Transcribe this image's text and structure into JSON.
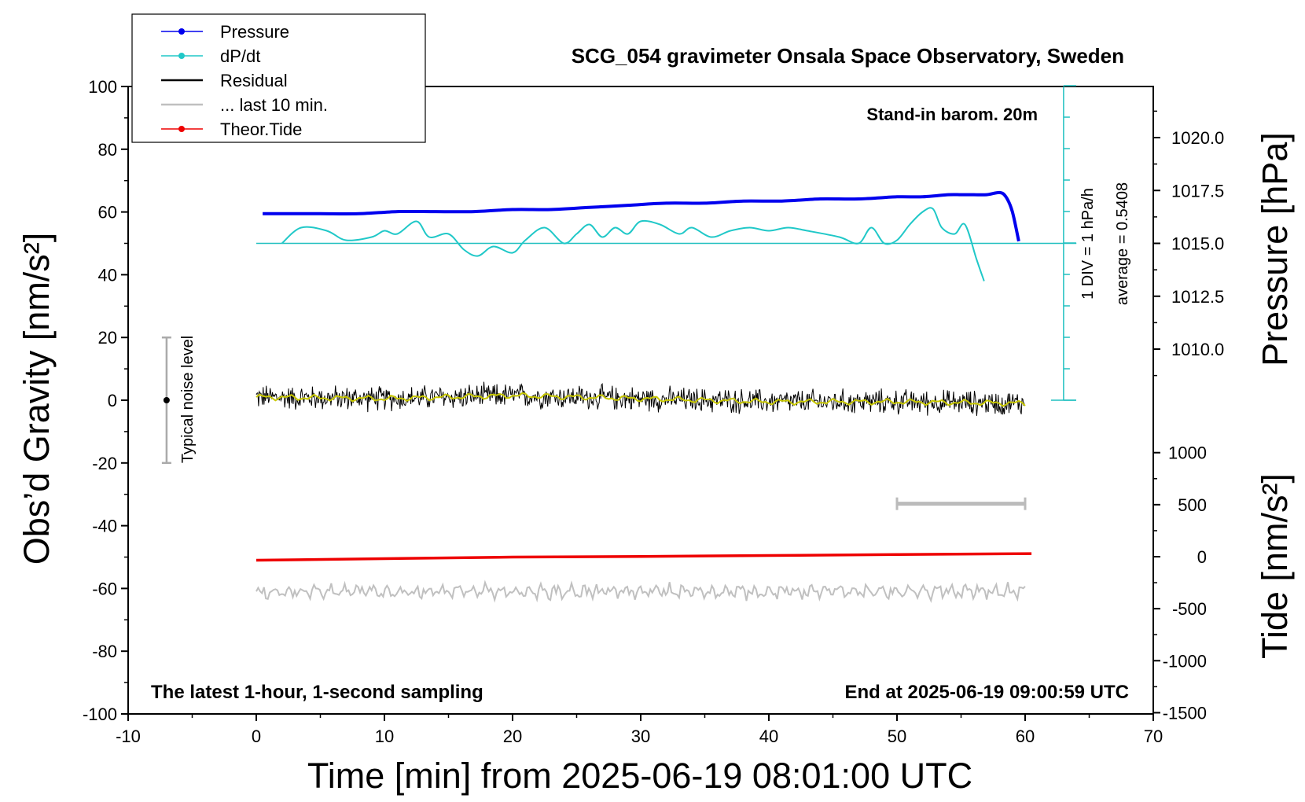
{
  "chart_data": {
    "type": "line",
    "title": "SCG_054 gravimeter Onsala Space Observatory, Sweden",
    "xlabel": "Time [min] from 2025-06-19 08:01:00 UTC",
    "ylabel_left": "Obs’d Gravity [nm/s²]",
    "ylabel_right_pressure": "Pressure [hPa]",
    "ylabel_right_tide": "Tide [nm/s²]",
    "xlim": [
      -10,
      70
    ],
    "ylim_left": [
      -100,
      100
    ],
    "xticks": [
      "-10",
      "0",
      "10",
      "20",
      "30",
      "40",
      "50",
      "60",
      "70"
    ],
    "yticks_left": [
      "100",
      "80",
      "60",
      "40",
      "20",
      "0",
      "-20",
      "-40",
      "-60",
      "-80",
      "-100"
    ],
    "pressure_axis": {
      "ticks": [
        "1020.0",
        "1017.5",
        "1015.0",
        "1012.5",
        "1010.0"
      ],
      "values": [
        1020.0,
        1017.5,
        1015.0,
        1012.5,
        1010.0
      ]
    },
    "tide_axis": {
      "ticks": [
        "1000",
        "500",
        "0",
        "-500",
        "-1000",
        "-1500"
      ],
      "values": [
        1000,
        500,
        0,
        -500,
        -1000,
        -1500
      ]
    },
    "legend": [
      "Pressure",
      "dP/dt",
      "Residual",
      "... last 10 min.",
      "Theor.Tide"
    ],
    "annotations": {
      "stand_in": "Stand-in barom. 20m",
      "div": "1 DIV = 1 hPa/h",
      "average": "average = 0.5408",
      "noise": "Typical noise level",
      "bottom_left": "The latest 1-hour, 1-second sampling",
      "bottom_right": "End at 2025-06-19 09:00:59 UTC"
    },
    "series": [
      {
        "name": "Pressure",
        "color": "#0000ee",
        "x": [
          0.5,
          2,
          5,
          8,
          11,
          14,
          17,
          20,
          23,
          26,
          29,
          32,
          35,
          38,
          41,
          44,
          47,
          50,
          52,
          54,
          55,
          56,
          57,
          58,
          58.5,
          59,
          59.5
        ],
        "y": [
          1016.4,
          1016.4,
          1016.4,
          1016.4,
          1016.5,
          1016.5,
          1016.5,
          1016.6,
          1016.6,
          1016.7,
          1016.8,
          1016.9,
          1016.9,
          1017.0,
          1017.0,
          1017.1,
          1017.1,
          1017.2,
          1017.2,
          1017.3,
          1017.3,
          1017.3,
          1017.3,
          1017.4,
          1017.2,
          1016.5,
          1015.1
        ]
      },
      {
        "name": "dP/dt",
        "color": "#00c8c8",
        "x": [
          2,
          3.5,
          5.5,
          7,
          9,
          10,
          11,
          12.5,
          13.5,
          15,
          16.2,
          17.3,
          18.5,
          20,
          21,
          22.5,
          24,
          25,
          26,
          27,
          28,
          29,
          30,
          31.5,
          33,
          34,
          35.5,
          37,
          38.5,
          40,
          41.5,
          43,
          45.5,
          47,
          48,
          49,
          50,
          51,
          52,
          52.8,
          53.5,
          54.5,
          55.3,
          56.2,
          56.8
        ],
        "y": [
          0.0,
          0.5,
          0.4,
          0.1,
          0.2,
          0.4,
          0.3,
          0.7,
          0.2,
          0.3,
          -0.2,
          -0.4,
          -0.1,
          -0.3,
          0.1,
          0.5,
          0.0,
          0.3,
          0.6,
          0.2,
          0.5,
          0.3,
          0.7,
          0.6,
          0.3,
          0.5,
          0.2,
          0.4,
          0.5,
          0.4,
          0.5,
          0.4,
          0.2,
          0.0,
          0.5,
          0.0,
          0.1,
          0.6,
          1.0,
          1.1,
          0.5,
          0.3,
          0.6,
          -0.5,
          -1.2
        ]
      },
      {
        "name": "Residual",
        "color": "#000000",
        "x": [
          0,
          10,
          20,
          30,
          40,
          50,
          60
        ],
        "y": [
          1.0,
          0.5,
          1.5,
          0.5,
          -0.5,
          -0.5,
          -1.0
        ],
        "noise_amplitude": 3
      },
      {
        "name": "... last 10 min.",
        "color": "#c0c0c0",
        "x": [
          0,
          60
        ],
        "y": [
          -61,
          -61
        ],
        "noise_amplitude": 2
      },
      {
        "name": "Theor.Tide",
        "color": "#ee0000",
        "x": [
          0,
          10,
          20,
          30,
          40,
          50,
          60.5
        ],
        "y": [
          -51,
          -50.5,
          -50,
          -49.8,
          -49.5,
          -49.2,
          -48.9
        ]
      }
    ],
    "dpdt_reference": {
      "average": 0.5408,
      "y_gravity": 50,
      "x_range": [
        0,
        64
      ]
    },
    "last10_bar": {
      "x_range": [
        50,
        60
      ],
      "y_gravity": -33
    },
    "noise_bar": {
      "x": -7,
      "y_range": [
        -20,
        20
      ]
    }
  }
}
